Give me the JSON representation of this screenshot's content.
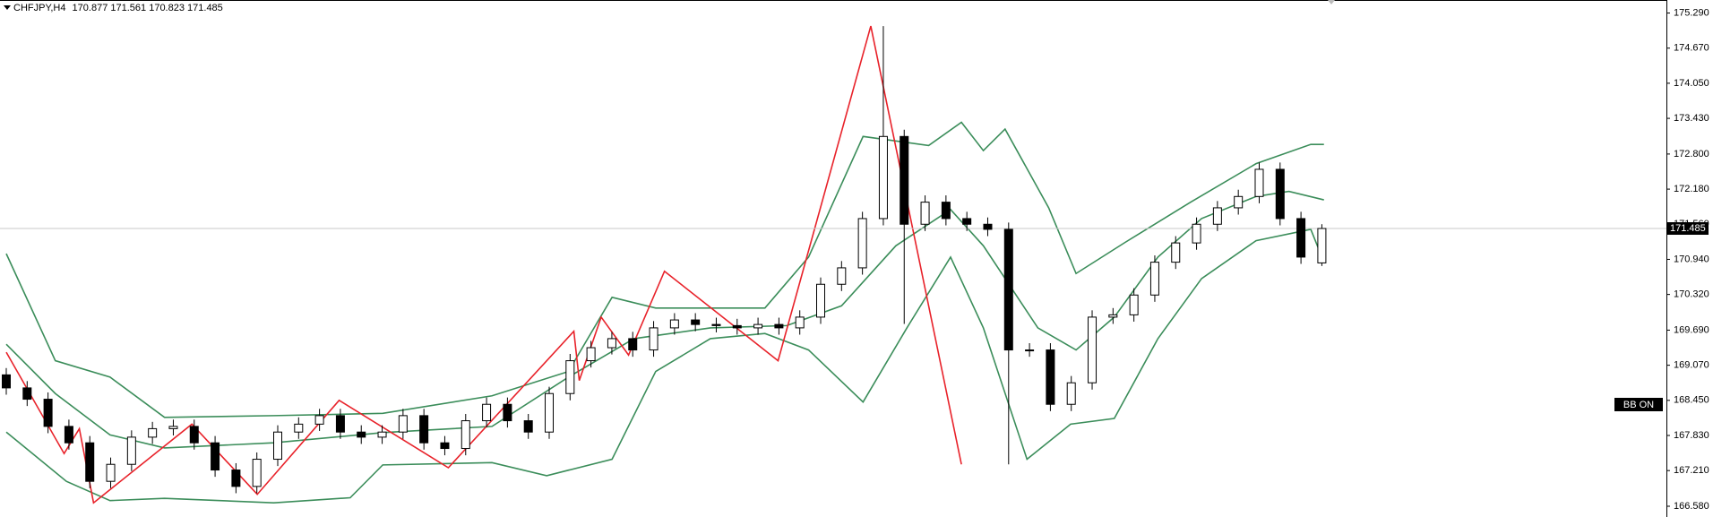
{
  "chart_data": {
    "type": "candlestick",
    "symbol": "CHFJPY,H4",
    "badge": "BB ON",
    "up_color": "#ffffff",
    "down_color": "#000000",
    "xlim": [
      -0.3,
      79.5
    ],
    "ylim": [
      166.39,
      175.52
    ],
    "yticks": [
      {
        "value": 175.29,
        "label": "175.290"
      },
      {
        "value": 174.67,
        "label": "174.670"
      },
      {
        "value": 174.05,
        "label": "174.050"
      },
      {
        "value": 173.43,
        "label": "173.430"
      },
      {
        "value": 172.8,
        "label": "172.800"
      },
      {
        "value": 172.18,
        "label": "172.180"
      },
      {
        "value": 171.56,
        "label": "171.560"
      },
      {
        "value": 170.94,
        "label": "170.940"
      },
      {
        "value": 170.32,
        "label": "170.320"
      },
      {
        "value": 169.69,
        "label": "169.690"
      },
      {
        "value": 169.07,
        "label": "169.070"
      },
      {
        "value": 168.45,
        "label": "168.450"
      },
      {
        "value": 167.83,
        "label": "167.830"
      },
      {
        "value": 167.21,
        "label": "167.210"
      },
      {
        "value": 166.58,
        "label": "166.580"
      }
    ],
    "open": [
      168.9,
      168.67,
      168.47,
      167.99,
      167.7,
      167.02,
      167.32,
      167.8,
      167.95,
      167.99,
      167.7,
      167.22,
      166.93,
      167.41,
      167.89,
      168.03,
      168.18,
      167.89,
      167.8,
      167.89,
      168.18,
      167.7,
      167.6,
      168.09,
      168.38,
      168.09,
      167.89,
      168.57,
      169.15,
      169.38,
      169.54,
      169.34,
      169.73,
      169.87,
      169.79,
      169.77,
      169.73,
      169.79,
      169.73,
      169.92,
      170.5,
      170.79,
      171.66,
      173.11,
      171.56,
      171.95,
      171.66,
      171.56,
      171.47,
      169.34,
      169.34,
      168.38,
      168.76,
      169.92,
      169.96,
      170.31,
      170.89,
      171.23,
      171.56,
      171.85,
      172.05,
      172.53,
      171.66,
      170.877
    ],
    "high": [
      169.02,
      168.79,
      168.59,
      168.11,
      167.82,
      167.44,
      167.92,
      168.07,
      168.11,
      168.11,
      167.82,
      167.34,
      167.53,
      168.01,
      168.15,
      168.3,
      168.3,
      168.01,
      168.01,
      168.3,
      168.3,
      167.82,
      168.21,
      168.5,
      168.5,
      168.21,
      168.69,
      169.27,
      169.5,
      169.66,
      169.66,
      169.85,
      169.99,
      169.99,
      169.91,
      169.89,
      169.91,
      169.91,
      170.04,
      170.62,
      170.91,
      171.78,
      175.06,
      173.23,
      172.07,
      172.07,
      171.78,
      171.68,
      171.59,
      169.46,
      169.46,
      168.88,
      170.04,
      170.08,
      170.43,
      171.01,
      171.35,
      171.68,
      171.97,
      172.17,
      172.65,
      172.65,
      171.78,
      171.561
    ],
    "low": [
      168.55,
      168.35,
      167.87,
      167.58,
      166.9,
      166.9,
      167.2,
      167.68,
      167.83,
      167.58,
      167.1,
      166.81,
      166.81,
      167.29,
      167.77,
      167.91,
      167.77,
      167.68,
      167.68,
      167.77,
      167.58,
      167.48,
      167.48,
      167.97,
      167.97,
      167.77,
      167.77,
      168.45,
      169.03,
      169.26,
      169.22,
      169.22,
      169.61,
      169.67,
      169.65,
      169.61,
      169.61,
      169.61,
      169.61,
      169.8,
      170.38,
      170.67,
      171.54,
      169.8,
      171.44,
      171.54,
      171.44,
      171.35,
      167.32,
      169.22,
      168.26,
      168.26,
      168.64,
      169.8,
      169.84,
      170.19,
      170.77,
      171.11,
      171.44,
      171.73,
      171.93,
      171.54,
      170.86,
      170.823
    ],
    "close": [
      168.67,
      168.47,
      167.99,
      167.7,
      167.02,
      167.32,
      167.8,
      167.95,
      167.99,
      167.7,
      167.22,
      166.93,
      167.41,
      167.89,
      168.03,
      168.18,
      167.89,
      167.8,
      167.89,
      168.18,
      167.7,
      167.6,
      168.09,
      168.38,
      168.09,
      167.89,
      168.57,
      169.15,
      169.38,
      169.54,
      169.34,
      169.73,
      169.87,
      169.79,
      169.77,
      169.73,
      169.79,
      169.73,
      169.92,
      170.5,
      170.79,
      171.66,
      173.11,
      171.56,
      171.95,
      171.66,
      171.56,
      171.47,
      169.34,
      169.34,
      168.38,
      168.76,
      169.92,
      169.96,
      170.31,
      170.89,
      171.23,
      171.56,
      171.85,
      172.05,
      172.53,
      171.66,
      170.98,
      171.485
    ],
    "overlays": [
      {
        "color": "#3b8d5a",
        "x": [
          0,
          2.35,
          4.97,
          7.58,
          12.81,
          18.03,
          23.26,
          26.92,
          29.01,
          31.1,
          36.33,
          38.42,
          41.03,
          44.17,
          45.74,
          46.79,
          47.83,
          49.92,
          51.23,
          53.58,
          56.72,
          59.85,
          62.47,
          63.1
        ],
        "values": [
          171.04,
          169.15,
          168.86,
          168.15,
          168.18,
          168.22,
          168.53,
          168.96,
          170.27,
          170.08,
          170.08,
          170.98,
          173.11,
          172.95,
          173.36,
          172.86,
          173.24,
          171.85,
          170.69,
          171.24,
          171.95,
          172.63,
          172.97,
          172.97
        ]
      },
      {
        "color": "#3b8d5a",
        "x": [
          0,
          2.35,
          4.97,
          7.58,
          12.81,
          18.03,
          23.26,
          26.92,
          30.06,
          33.72,
          37.38,
          40.0,
          42.6,
          45.22,
          46.79,
          49.4,
          51.23,
          53.06,
          55.15,
          57.24,
          59.85,
          61.42,
          63.1
        ],
        "values": [
          169.44,
          168.57,
          167.84,
          167.61,
          167.7,
          167.88,
          167.99,
          168.86,
          169.54,
          169.73,
          169.77,
          170.12,
          171.18,
          171.82,
          171.18,
          169.73,
          169.34,
          169.92,
          170.98,
          171.66,
          172.05,
          172.14,
          171.99
        ]
      },
      {
        "color": "#3b8d5a",
        "x": [
          0,
          2.88,
          4.97,
          7.58,
          12.81,
          16.47,
          18.03,
          23.26,
          25.88,
          29.01,
          31.1,
          33.72,
          36.33,
          38.42,
          41.03,
          43.13,
          45.22,
          46.79,
          48.88,
          50.97,
          53.06,
          55.15,
          57.24,
          59.85,
          62.47,
          63.1
        ],
        "values": [
          167.89,
          167.02,
          166.68,
          166.72,
          166.64,
          166.73,
          167.31,
          167.35,
          167.12,
          167.41,
          168.96,
          169.54,
          169.63,
          169.34,
          168.42,
          169.73,
          170.98,
          169.73,
          167.41,
          168.03,
          168.13,
          169.54,
          170.6,
          171.27,
          171.47,
          170.89
        ]
      },
      {
        "color": "#e8222a",
        "x": [
          0,
          2.77,
          3.5,
          4.18,
          8.89,
          12.02,
          15.94,
          21.17,
          27.18,
          27.44,
          28.49,
          29.8,
          31.52,
          36.96,
          41.4,
          45.74
        ],
        "values": [
          169.3,
          167.51,
          167.95,
          166.64,
          168.03,
          166.79,
          168.45,
          167.26,
          169.67,
          168.8,
          169.92,
          169.25,
          170.73,
          169.15,
          175.06,
          167.32
        ]
      }
    ]
  }
}
